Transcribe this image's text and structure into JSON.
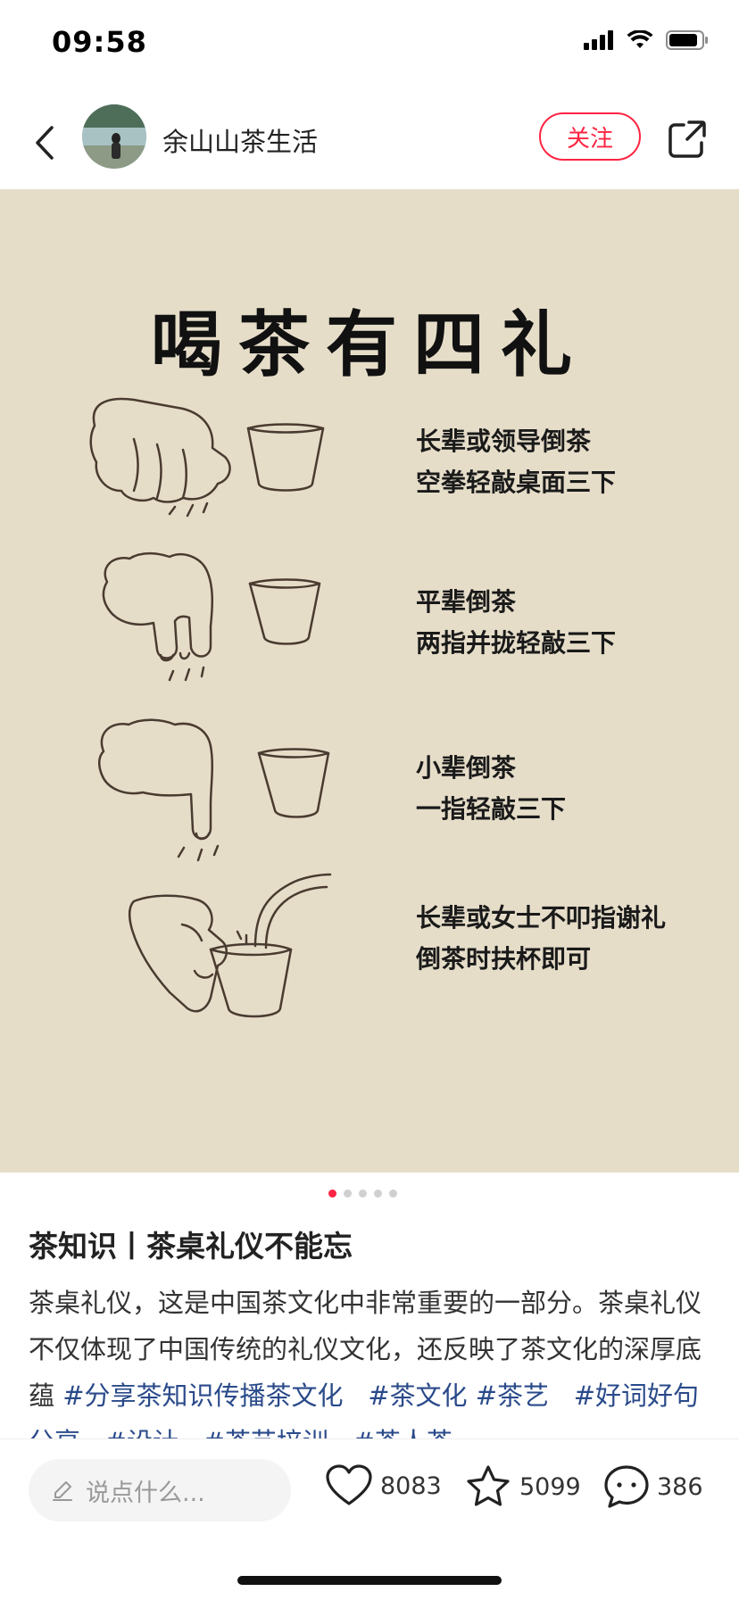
{
  "status_bar": {
    "time": "09:58"
  },
  "header": {
    "author": "余山山茶生活",
    "follow_label": "关注"
  },
  "image": {
    "title": "喝茶有四礼",
    "rows": [
      {
        "line1": "长辈或领导倒茶",
        "line2": "空拳轻敲桌面三下"
      },
      {
        "line1": "平辈倒茶",
        "line2": "两指并拢轻敲三下"
      },
      {
        "line1": "小辈倒茶",
        "line2": "一指轻敲三下"
      },
      {
        "line1": "长辈或女士不叩指谢礼",
        "line2": "倒茶时扶杯即可"
      }
    ],
    "page_count": 5,
    "active_page": 1
  },
  "note": {
    "title": "茶知识丨茶桌礼仪不能忘",
    "body": "茶桌礼仪，这是中国茶文化中非常重要的一部分。茶桌礼仪不仅体现了中国传统的礼仪文化，还反映了茶文化的深厚底蕴",
    "tags": [
      "#分享茶知识传播茶文化",
      "#茶文化",
      "#茶艺",
      "#好词好句分享",
      "#设计",
      "#茶艺培训",
      "#茶人茶"
    ]
  },
  "bottom": {
    "placeholder": "说点什么...",
    "likes": "8083",
    "collects": "5099",
    "comments": "386"
  },
  "colors": {
    "accent": "#ff2442",
    "image_bg": "#e6ddc9",
    "tag": "#2a4a8a"
  }
}
